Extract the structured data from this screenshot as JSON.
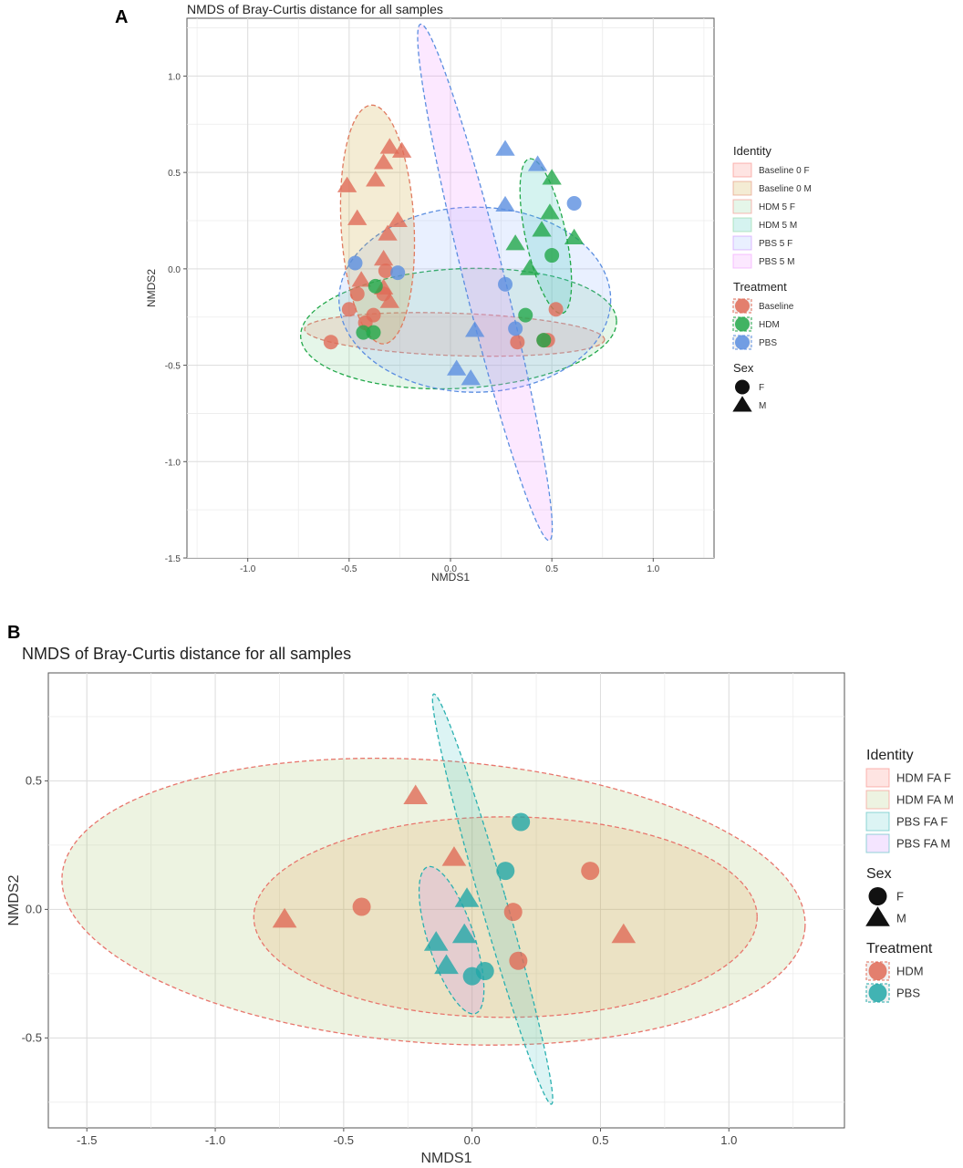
{
  "panels": {
    "a_letter": "A",
    "b_letter": "B"
  },
  "chart_data": [
    {
      "type": "scatter",
      "title": "NMDS of Bray-Curtis distance for all samples",
      "xlabel": "NMDS1",
      "ylabel": "NMDS2",
      "xlim": [
        -1.3,
        1.3
      ],
      "ylim": [
        -1.5,
        1.3
      ],
      "xticks": [
        -1.0,
        -0.5,
        0.0,
        0.5,
        1.0
      ],
      "xtick_labels": [
        "-1.0",
        "-0.5",
        "0.0",
        "0.5",
        "1.0"
      ],
      "yticks": [
        -1.5,
        -1.0,
        -0.5,
        0.0,
        0.5,
        1.0
      ],
      "ytick_labels": [
        "-1.5",
        "-1.0",
        "-0.5",
        "0.0",
        "0.5",
        "1.0"
      ],
      "grid": true,
      "legend": {
        "placement": "right",
        "identity_title": "Identity",
        "identity": [
          {
            "label": "Baseline 0 F",
            "fill": "#f8766d",
            "stroke": "#f8766d"
          },
          {
            "label": "Baseline 0 M",
            "fill": "#c9a227",
            "stroke": "#e07a5f"
          },
          {
            "label": "HDM 5 F",
            "fill": "#7cd08f",
            "stroke": "#f8766d"
          },
          {
            "label": "HDM 5 M",
            "fill": "#2ec4b6",
            "stroke": "#7cd08f"
          },
          {
            "label": "PBS 5 F",
            "fill": "#8fb3ff",
            "stroke": "#c77cff"
          },
          {
            "label": "PBS 5 M",
            "fill": "#f08bff",
            "stroke": "#f08bff"
          }
        ],
        "treatment_title": "Treatment",
        "treatment": [
          {
            "label": "Baseline",
            "color": "#e06b57"
          },
          {
            "label": "HDM",
            "color": "#22a84a"
          },
          {
            "label": "PBS",
            "color": "#5b8ee0"
          }
        ],
        "sex_title": "Sex",
        "sex": [
          {
            "label": "F",
            "shape": "circle"
          },
          {
            "label": "M",
            "shape": "triangle"
          }
        ]
      },
      "ellipses": [
        {
          "identity": "Baseline 0 F",
          "fill": "#f8766d",
          "stroke": "#e8766d",
          "center": [
            0.02,
            -0.34
          ],
          "rx": 0.74,
          "ry": 0.11,
          "angle_deg": -2
        },
        {
          "identity": "HDM 5 F",
          "fill": "#7cd08f",
          "stroke": "#22a84a",
          "center": [
            0.04,
            -0.31
          ],
          "rx": 0.78,
          "ry": 0.31,
          "angle_deg": 3
        },
        {
          "identity": "PBS 5 F",
          "fill": "#8fb3ff",
          "stroke": "#5b8ee0",
          "center": [
            0.12,
            -0.16
          ],
          "rx": 0.67,
          "ry": 0.48,
          "angle_deg": 0
        },
        {
          "identity": "Baseline 0 M",
          "fill": "#c9a227",
          "stroke": "#e07a5f",
          "center": [
            -0.36,
            0.23
          ],
          "rx": 0.18,
          "ry": 0.62,
          "angle_deg": 3
        },
        {
          "identity": "HDM 5 M",
          "fill": "#2ec4b6",
          "stroke": "#22a84a",
          "center": [
            0.47,
            0.17
          ],
          "rx": 0.1,
          "ry": 0.41,
          "angle_deg": 12
        },
        {
          "identity": "PBS 5 M",
          "fill": "#f08bff",
          "stroke": "#5b8ee0",
          "center": [
            0.17,
            -0.07
          ],
          "rx": 0.1,
          "ry": 1.38,
          "angle_deg": 14
        }
      ],
      "points": [
        {
          "x": -0.51,
          "y": 0.43,
          "sex": "M",
          "treatment": "Baseline"
        },
        {
          "x": -0.46,
          "y": 0.26,
          "sex": "M",
          "treatment": "Baseline"
        },
        {
          "x": -0.37,
          "y": 0.46,
          "sex": "M",
          "treatment": "Baseline"
        },
        {
          "x": -0.33,
          "y": 0.55,
          "sex": "M",
          "treatment": "Baseline"
        },
        {
          "x": -0.3,
          "y": 0.63,
          "sex": "M",
          "treatment": "Baseline"
        },
        {
          "x": -0.24,
          "y": 0.61,
          "sex": "M",
          "treatment": "Baseline"
        },
        {
          "x": -0.26,
          "y": 0.25,
          "sex": "M",
          "treatment": "Baseline"
        },
        {
          "x": -0.31,
          "y": 0.18,
          "sex": "M",
          "treatment": "Baseline"
        },
        {
          "x": -0.33,
          "y": 0.05,
          "sex": "M",
          "treatment": "Baseline"
        },
        {
          "x": -0.44,
          "y": -0.06,
          "sex": "M",
          "treatment": "Baseline"
        },
        {
          "x": -0.33,
          "y": -0.1,
          "sex": "M",
          "treatment": "Baseline"
        },
        {
          "x": -0.3,
          "y": -0.17,
          "sex": "M",
          "treatment": "Baseline"
        },
        {
          "x": -0.32,
          "y": -0.01,
          "sex": "F",
          "treatment": "Baseline"
        },
        {
          "x": -0.46,
          "y": -0.13,
          "sex": "F",
          "treatment": "Baseline"
        },
        {
          "x": -0.5,
          "y": -0.21,
          "sex": "F",
          "treatment": "Baseline"
        },
        {
          "x": -0.38,
          "y": -0.24,
          "sex": "F",
          "treatment": "Baseline"
        },
        {
          "x": -0.42,
          "y": -0.28,
          "sex": "F",
          "treatment": "Baseline"
        },
        {
          "x": -0.33,
          "y": -0.13,
          "sex": "F",
          "treatment": "Baseline"
        },
        {
          "x": -0.59,
          "y": -0.38,
          "sex": "F",
          "treatment": "Baseline"
        },
        {
          "x": 0.33,
          "y": -0.38,
          "sex": "F",
          "treatment": "Baseline"
        },
        {
          "x": 0.46,
          "y": -0.37,
          "sex": "F",
          "treatment": "Baseline"
        },
        {
          "x": 0.48,
          "y": -0.37,
          "sex": "F",
          "treatment": "Baseline"
        },
        {
          "x": 0.52,
          "y": -0.21,
          "sex": "F",
          "treatment": "Baseline"
        },
        {
          "x": 0.5,
          "y": 0.47,
          "sex": "M",
          "treatment": "HDM"
        },
        {
          "x": 0.49,
          "y": 0.29,
          "sex": "M",
          "treatment": "HDM"
        },
        {
          "x": 0.45,
          "y": 0.2,
          "sex": "M",
          "treatment": "HDM"
        },
        {
          "x": 0.61,
          "y": 0.16,
          "sex": "M",
          "treatment": "HDM"
        },
        {
          "x": 0.32,
          "y": 0.13,
          "sex": "M",
          "treatment": "HDM"
        },
        {
          "x": 0.39,
          "y": 0.0,
          "sex": "M",
          "treatment": "HDM"
        },
        {
          "x": 0.5,
          "y": 0.07,
          "sex": "F",
          "treatment": "HDM"
        },
        {
          "x": -0.37,
          "y": -0.09,
          "sex": "F",
          "treatment": "HDM"
        },
        {
          "x": -0.38,
          "y": -0.33,
          "sex": "F",
          "treatment": "HDM"
        },
        {
          "x": -0.43,
          "y": -0.33,
          "sex": "F",
          "treatment": "HDM"
        },
        {
          "x": 0.37,
          "y": -0.24,
          "sex": "F",
          "treatment": "HDM"
        },
        {
          "x": 0.46,
          "y": -0.37,
          "sex": "F",
          "treatment": "HDM"
        },
        {
          "x": 0.27,
          "y": 0.62,
          "sex": "M",
          "treatment": "PBS"
        },
        {
          "x": 0.43,
          "y": 0.54,
          "sex": "M",
          "treatment": "PBS"
        },
        {
          "x": 0.27,
          "y": 0.33,
          "sex": "M",
          "treatment": "PBS"
        },
        {
          "x": 0.12,
          "y": -0.32,
          "sex": "M",
          "treatment": "PBS"
        },
        {
          "x": 0.03,
          "y": -0.52,
          "sex": "M",
          "treatment": "PBS"
        },
        {
          "x": 0.1,
          "y": -0.57,
          "sex": "M",
          "treatment": "PBS"
        },
        {
          "x": 0.61,
          "y": 0.34,
          "sex": "F",
          "treatment": "PBS"
        },
        {
          "x": -0.47,
          "y": 0.03,
          "sex": "F",
          "treatment": "PBS"
        },
        {
          "x": -0.26,
          "y": -0.02,
          "sex": "F",
          "treatment": "PBS"
        },
        {
          "x": 0.27,
          "y": -0.08,
          "sex": "F",
          "treatment": "PBS"
        },
        {
          "x": 0.32,
          "y": -0.31,
          "sex": "F",
          "treatment": "PBS"
        }
      ]
    },
    {
      "type": "scatter",
      "title": "NMDS of Bray-Curtis distance for all samples",
      "xlabel": "NMDS1",
      "ylabel": "NMDS2",
      "xlim": [
        -1.65,
        1.45
      ],
      "ylim": [
        -0.85,
        0.92
      ],
      "xticks": [
        -1.5,
        -1.0,
        -0.5,
        0.0,
        0.5,
        1.0
      ],
      "xtick_labels": [
        "-1.5",
        "-1.0",
        "-0.5",
        "0.0",
        "0.5",
        "1.0"
      ],
      "yticks": [
        -0.5,
        0.0,
        0.5
      ],
      "ytick_labels": [
        "-0.5",
        "0.0",
        "0.5"
      ],
      "grid": true,
      "legend": {
        "placement": "right",
        "identity_title": "Identity",
        "identity": [
          {
            "label": "HDM FA F",
            "fill": "#f8766d",
            "stroke": "#f8766d"
          },
          {
            "label": "HDM FA M",
            "fill": "#a3c46b",
            "stroke": "#f8766d"
          },
          {
            "label": "PBS FA F",
            "fill": "#4fc7c7",
            "stroke": "#2ab0b0"
          },
          {
            "label": "PBS FA M",
            "fill": "#c77cff",
            "stroke": "#2ab0b0"
          }
        ],
        "sex_title": "Sex",
        "sex": [
          {
            "label": "F",
            "shape": "circle"
          },
          {
            "label": "M",
            "shape": "triangle"
          }
        ],
        "treatment_title": "Treatment",
        "treatment": [
          {
            "label": "HDM",
            "color": "#e06b57"
          },
          {
            "label": "PBS",
            "color": "#22a8a8"
          }
        ]
      },
      "ellipses": [
        {
          "identity": "HDM FA M",
          "fill": "#a3c46b",
          "stroke": "#e8766d",
          "center": [
            -0.15,
            0.03
          ],
          "rx": 1.45,
          "ry": 0.55,
          "angle_deg": -4
        },
        {
          "identity": "HDM FA F",
          "fill": "#e8a050",
          "stroke": "#e8766d",
          "center": [
            0.13,
            -0.03
          ],
          "rx": 0.98,
          "ry": 0.39,
          "angle_deg": 0
        },
        {
          "identity": "PBS FA F",
          "fill": "#4fc7c7",
          "stroke": "#2ab0b0",
          "center": [
            0.08,
            0.04
          ],
          "rx": 0.05,
          "ry": 0.83,
          "angle_deg": 16
        },
        {
          "identity": "PBS FA M",
          "fill": "#c77cff",
          "stroke": "#2ab0b0",
          "center": [
            -0.08,
            -0.12
          ],
          "rx": 0.09,
          "ry": 0.3,
          "angle_deg": 18
        }
      ],
      "points": [
        {
          "x": -0.22,
          "y": 0.44,
          "sex": "M",
          "treatment": "HDM"
        },
        {
          "x": -0.07,
          "y": 0.2,
          "sex": "M",
          "treatment": "HDM"
        },
        {
          "x": -0.73,
          "y": -0.04,
          "sex": "M",
          "treatment": "HDM"
        },
        {
          "x": 0.59,
          "y": -0.1,
          "sex": "M",
          "treatment": "HDM"
        },
        {
          "x": -0.43,
          "y": 0.01,
          "sex": "F",
          "treatment": "HDM"
        },
        {
          "x": 0.46,
          "y": 0.15,
          "sex": "F",
          "treatment": "HDM"
        },
        {
          "x": 0.16,
          "y": -0.01,
          "sex": "F",
          "treatment": "HDM"
        },
        {
          "x": 0.18,
          "y": -0.2,
          "sex": "F",
          "treatment": "HDM"
        },
        {
          "x": -0.02,
          "y": 0.04,
          "sex": "M",
          "treatment": "PBS"
        },
        {
          "x": -0.14,
          "y": -0.13,
          "sex": "M",
          "treatment": "PBS"
        },
        {
          "x": -0.03,
          "y": -0.1,
          "sex": "M",
          "treatment": "PBS"
        },
        {
          "x": -0.1,
          "y": -0.22,
          "sex": "M",
          "treatment": "PBS"
        },
        {
          "x": 0.19,
          "y": 0.34,
          "sex": "F",
          "treatment": "PBS"
        },
        {
          "x": 0.13,
          "y": 0.15,
          "sex": "F",
          "treatment": "PBS"
        },
        {
          "x": 0.0,
          "y": -0.26,
          "sex": "F",
          "treatment": "PBS"
        },
        {
          "x": 0.05,
          "y": -0.24,
          "sex": "F",
          "treatment": "PBS"
        }
      ]
    }
  ]
}
